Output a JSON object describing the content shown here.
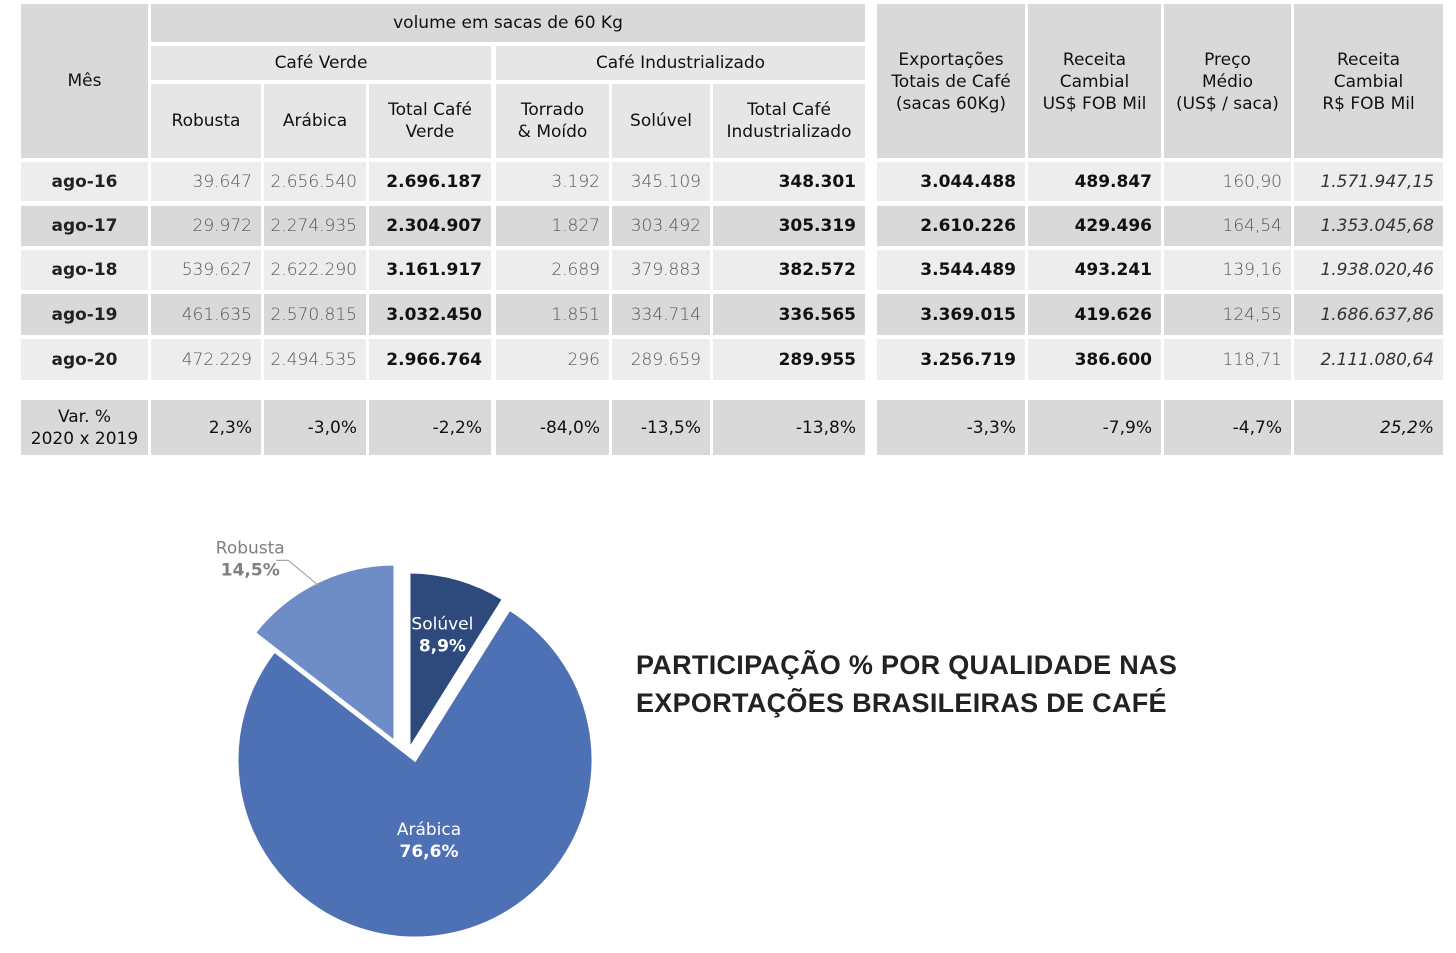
{
  "table": {
    "header": {
      "mes": "Mês",
      "volume": "volume em sacas de 60 Kg",
      "cafe_verde": "Café Verde",
      "cafe_industrializado": "Café Industrializado",
      "robusta": "Robusta",
      "arabica": "Arábica",
      "total_verde": "Total Café\nVerde",
      "torrado": "Torrado\n& Moído",
      "soluvel": "Solúvel",
      "total_ind": "Total Café\nIndustrializado",
      "exportacoes": "Exportações\nTotais de Café\n(sacas 60Kg)",
      "receita_usd": "Receita\nCambial\nUS$ FOB Mil",
      "preco": "Preço\nMédio\n(US$ / saca)",
      "receita_brl": "Receita\nCambial\nR$ FOB Mil"
    },
    "rows": [
      [
        "ago-16",
        "39.647",
        "2.656.540",
        "2.696.187",
        "3.192",
        "345.109",
        "348.301",
        "3.044.488",
        "489.847",
        "160,90",
        "1.571.947,15"
      ],
      [
        "ago-17",
        "29.972",
        "2.274.935",
        "2.304.907",
        "1.827",
        "303.492",
        "305.319",
        "2.610.226",
        "429.496",
        "164,54",
        "1.353.045,68"
      ],
      [
        "ago-18",
        "539.627",
        "2.622.290",
        "3.161.917",
        "2.689",
        "379.883",
        "382.572",
        "3.544.489",
        "493.241",
        "139,16",
        "1.938.020,46"
      ],
      [
        "ago-19",
        "461.635",
        "2.570.815",
        "3.032.450",
        "1.851",
        "334.714",
        "336.565",
        "3.369.015",
        "419.626",
        "124,55",
        "1.686.637,86"
      ],
      [
        "ago-20",
        "472.229",
        "2.494.535",
        "2.966.764",
        "296",
        "289.659",
        "289.955",
        "3.256.719",
        "386.600",
        "118,71",
        "2.111.080,64"
      ]
    ],
    "variation": [
      "Var. %\n2020 x 2019",
      "2,3%",
      "-3,0%",
      "-2,2%",
      "-84,0%",
      "-13,5%",
      "-13,8%",
      "-3,3%",
      "-7,9%",
      "-4,7%",
      "25,2%"
    ]
  },
  "chart_data": {
    "type": "pie",
    "title_lines": [
      "PARTICIPAÇÃO % POR QUALIDADE NAS",
      "EXPORTAÇÕES BRASILEIRAS DE CAFÉ"
    ],
    "slices": [
      {
        "name": "Solúvel",
        "value": 8.9,
        "label": "8,9%",
        "color": "#2e4a7c"
      },
      {
        "name": "Arábica",
        "value": 76.6,
        "label": "76,6%",
        "color": "#4e71b5"
      },
      {
        "name": "Robusta",
        "value": 14.5,
        "label": "14,5%",
        "color": "#6e8cc6"
      }
    ]
  }
}
